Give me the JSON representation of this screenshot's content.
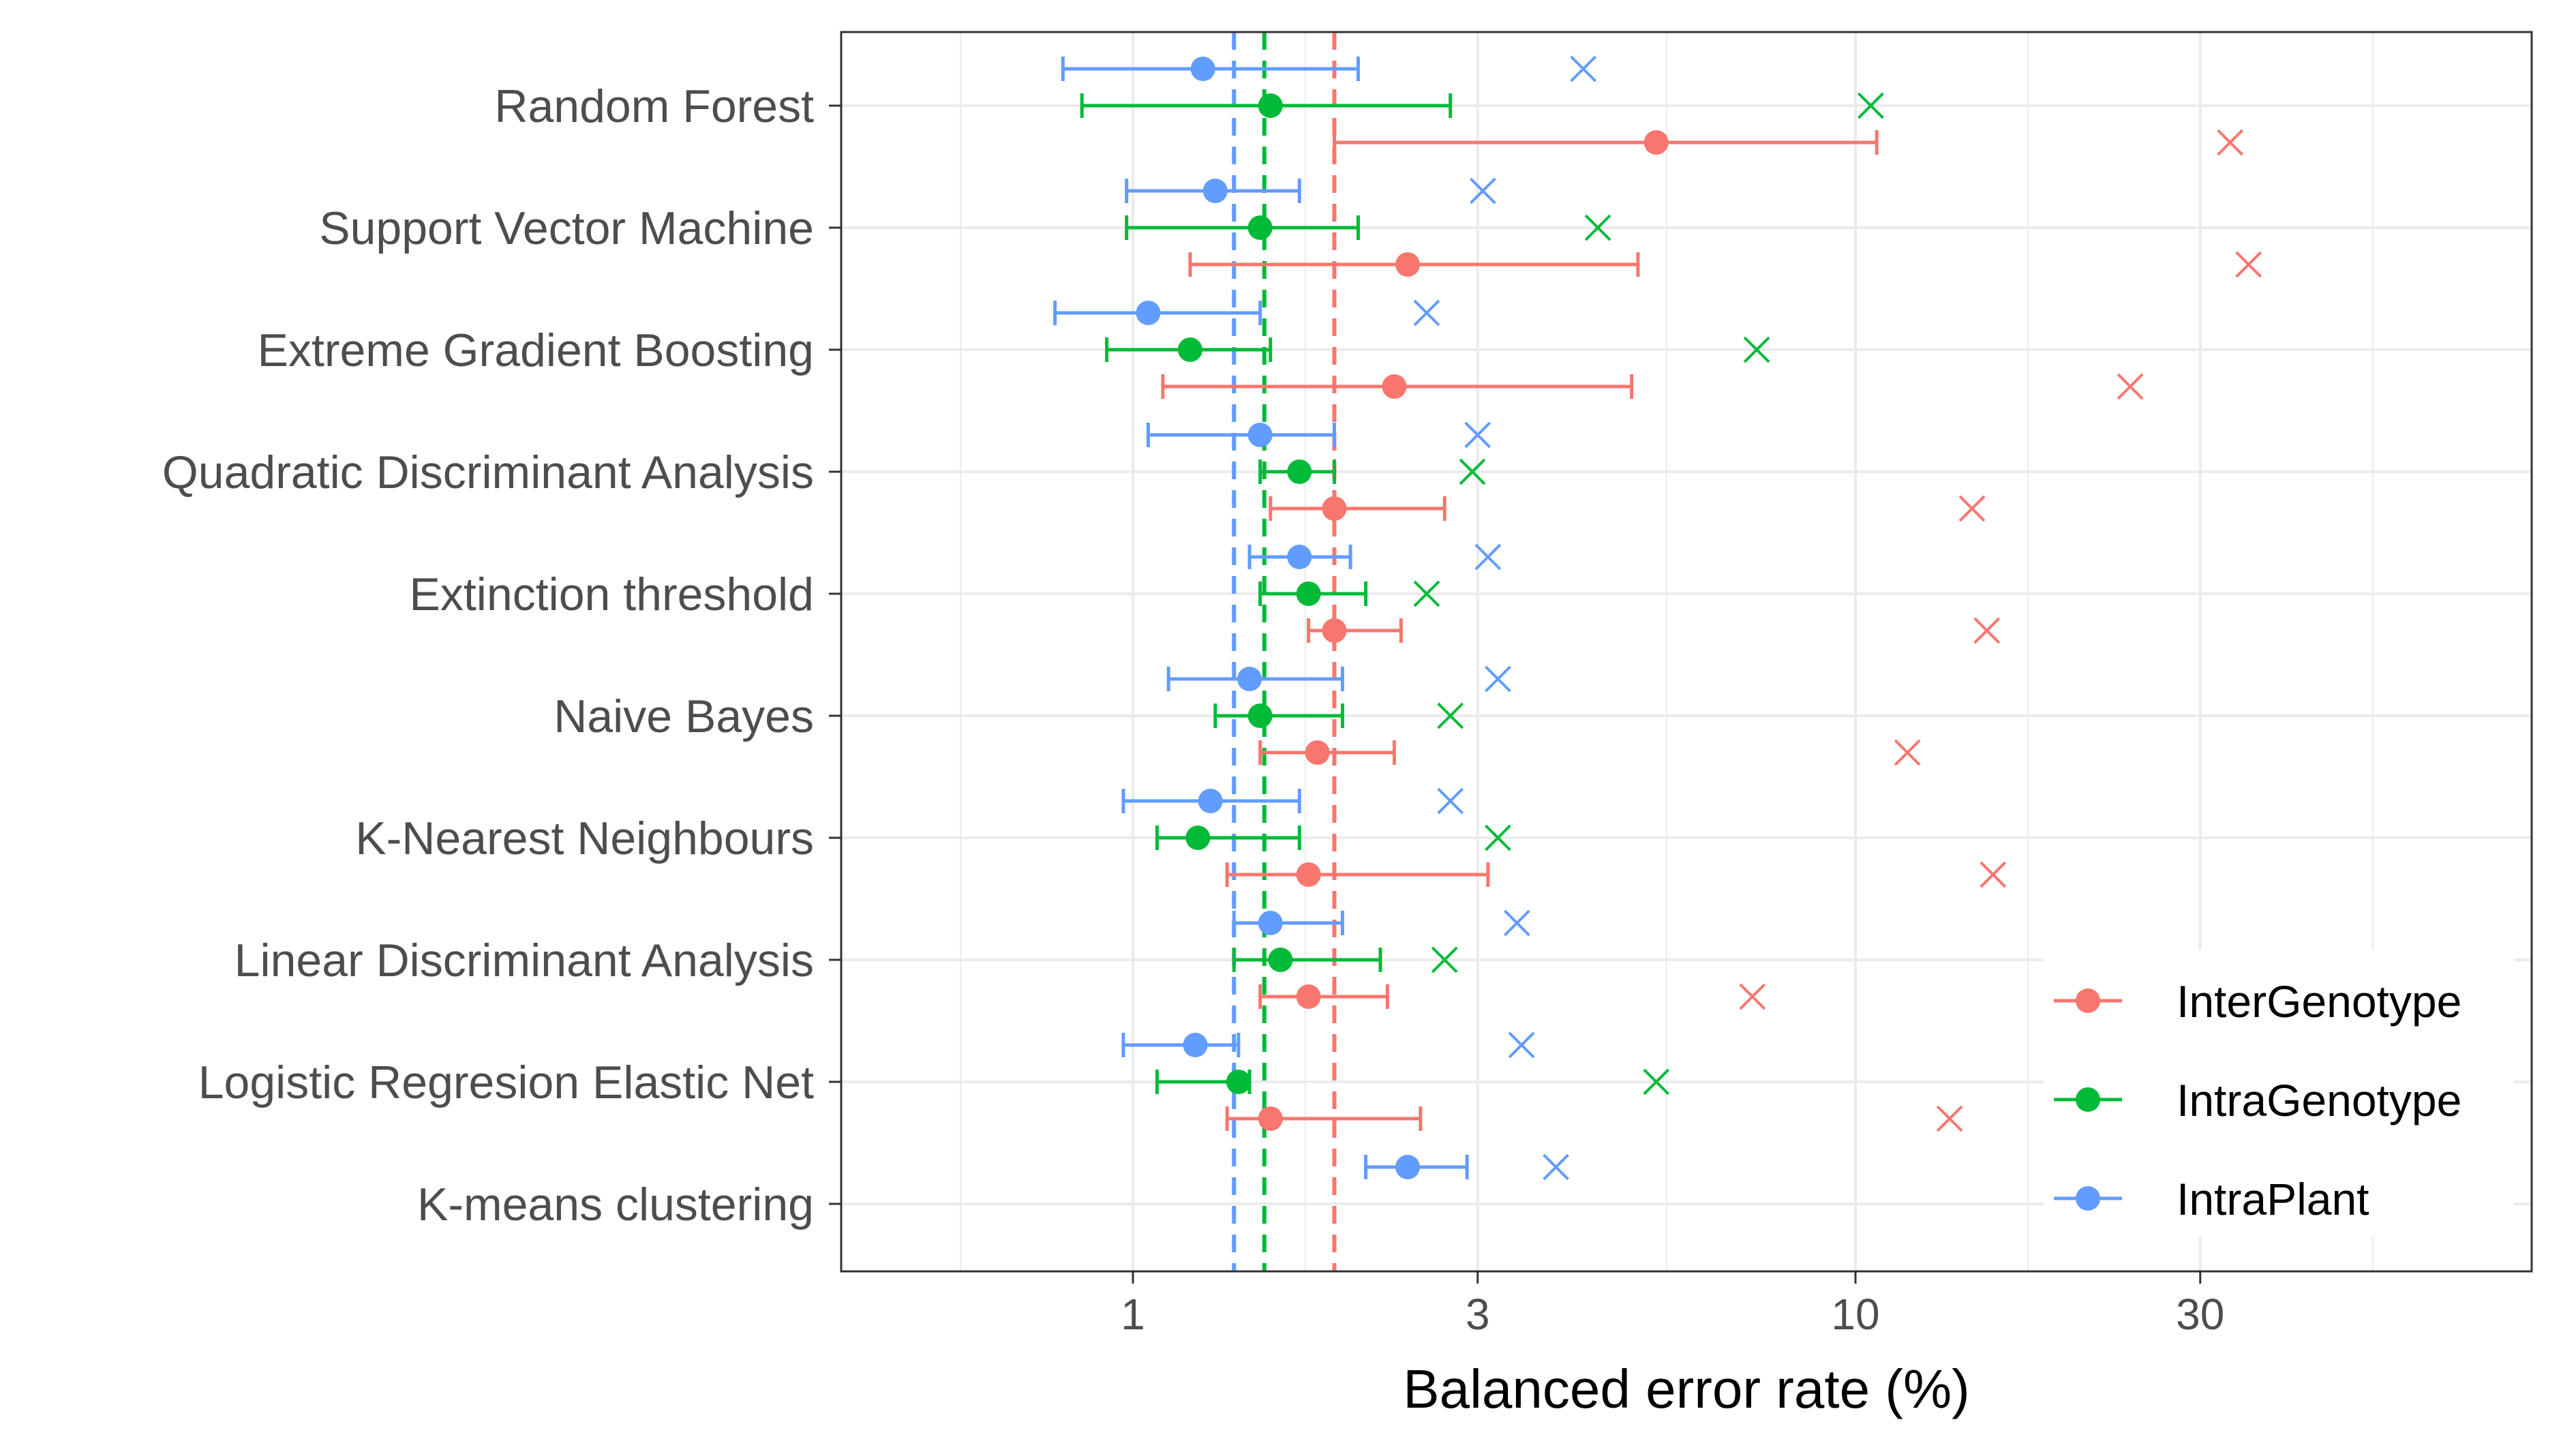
{
  "chart_data": {
    "type": "scatter",
    "title": "",
    "xlabel": "Balanced error rate (%)",
    "ylabel": "",
    "x_scale": "log10",
    "xlim": [
      0.28,
      90
    ],
    "x_ticks": [
      1,
      3,
      10,
      30
    ],
    "x_tick_labels": [
      "1",
      "3",
      "10",
      "30"
    ],
    "grid": true,
    "legend_position": "bottom-right",
    "categories": [
      "Random Forest",
      "Support Vector Machine",
      "Extreme Gradient Boosting",
      "Quadratic Discriminant Analysis",
      "Extinction threshold",
      "Naive Bayes",
      "K-Nearest Neighbours",
      "Linear Discriminant Analysis",
      "Logistic Regresion Elastic Net",
      "K-means clustering"
    ],
    "series": [
      {
        "name": "InterGenotype",
        "color": "#F8766D",
        "reference_line": 1.9,
        "points": [
          {
            "mean": 5.3,
            "lo": 1.9,
            "hi": 10.7,
            "cross": 33
          },
          {
            "mean": 2.4,
            "lo": 1.2,
            "hi": 5.0,
            "cross": 35
          },
          {
            "mean": 2.3,
            "lo": 1.1,
            "hi": 4.9,
            "cross": 24
          },
          {
            "mean": 1.9,
            "lo": 1.55,
            "hi": 2.7,
            "cross": 14.5
          },
          {
            "mean": 1.9,
            "lo": 1.75,
            "hi": 2.35,
            "cross": 15.2
          },
          {
            "mean": 1.8,
            "lo": 1.5,
            "hi": 2.3,
            "cross": 11.8
          },
          {
            "mean": 1.75,
            "lo": 1.35,
            "hi": 3.1,
            "cross": 15.5
          },
          {
            "mean": 1.75,
            "lo": 1.5,
            "hi": 2.25,
            "cross": 7.2
          },
          {
            "mean": 1.55,
            "lo": 1.35,
            "hi": 2.5,
            "cross": 13.5
          }
        ]
      },
      {
        "name": "IntraGenotype",
        "color": "#00BA38",
        "reference_line": 1.52,
        "points": [
          {
            "mean": 1.55,
            "lo": 0.85,
            "hi": 2.75,
            "cross": 10.5
          },
          {
            "mean": 1.5,
            "lo": 0.98,
            "hi": 2.05,
            "cross": 4.4
          },
          {
            "mean": 1.2,
            "lo": 0.92,
            "hi": 1.55,
            "cross": 7.3
          },
          {
            "mean": 1.7,
            "lo": 1.5,
            "hi": 1.9,
            "cross": 2.95
          },
          {
            "mean": 1.75,
            "lo": 1.5,
            "hi": 2.1,
            "cross": 2.55
          },
          {
            "mean": 1.5,
            "lo": 1.3,
            "hi": 1.95,
            "cross": 2.75
          },
          {
            "mean": 1.23,
            "lo": 1.08,
            "hi": 1.7,
            "cross": 3.2
          },
          {
            "mean": 1.6,
            "lo": 1.38,
            "hi": 2.2,
            "cross": 2.7
          },
          {
            "mean": 1.4,
            "lo": 1.08,
            "hi": 1.45,
            "cross": 5.3
          },
          null
        ]
      },
      {
        "name": "IntraPlant",
        "color": "#619CFF",
        "reference_line": 1.38,
        "points": [
          {
            "mean": 1.25,
            "lo": 0.8,
            "hi": 2.05,
            "cross": 4.2
          },
          {
            "mean": 1.3,
            "lo": 0.98,
            "hi": 1.7,
            "cross": 3.05
          },
          {
            "mean": 1.05,
            "lo": 0.78,
            "hi": 1.5,
            "cross": 2.55
          },
          {
            "mean": 1.5,
            "lo": 1.05,
            "hi": 1.9,
            "cross": 3.0
          },
          {
            "mean": 1.7,
            "lo": 1.45,
            "hi": 2.0,
            "cross": 3.1
          },
          {
            "mean": 1.45,
            "lo": 1.12,
            "hi": 1.95,
            "cross": 3.2
          },
          {
            "mean": 1.28,
            "lo": 0.97,
            "hi": 1.7,
            "cross": 2.75
          },
          {
            "mean": 1.55,
            "lo": 1.38,
            "hi": 1.95,
            "cross": 3.4
          },
          {
            "mean": 1.22,
            "lo": 0.97,
            "hi": 1.4,
            "cross": 3.45
          },
          {
            "mean": 2.4,
            "lo": 2.1,
            "hi": 2.9,
            "cross": 3.85
          }
        ]
      }
    ]
  }
}
